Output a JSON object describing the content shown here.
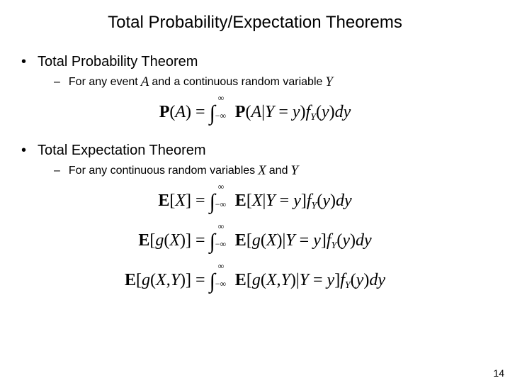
{
  "title": "Total Probability/Expectation Theorems",
  "section1": {
    "heading": "Total Probability Theorem",
    "sub_prefix": "For any event",
    "sub_var1": "A",
    "sub_mid": "and a continuous random variable",
    "sub_var2": "Y"
  },
  "section2": {
    "heading": "Total Expectation Theorem",
    "sub_prefix": "For any continuous random variables",
    "sub_var1": "X",
    "sub_mid": "and",
    "sub_var2": "Y"
  },
  "formulas": {
    "f1_lhs_bold": "P",
    "f1_lhs_paren": "(A)",
    "f2_lhs_bold": "E",
    "f2_lhs_br": "[X]",
    "f3_lhs_bold": "E",
    "f3_lhs_br": "[g(X)]",
    "f4_lhs_bold": "E",
    "f4_lhs_br": "[g(X,Y)]"
  },
  "page_number": "14",
  "colors": {
    "text": "#000000",
    "background": "#ffffff"
  },
  "typography": {
    "title_fontsize": 24,
    "heading_fontsize": 20,
    "sub_fontsize": 16,
    "formula_fontsize": 24,
    "pagenum_fontsize": 14
  }
}
